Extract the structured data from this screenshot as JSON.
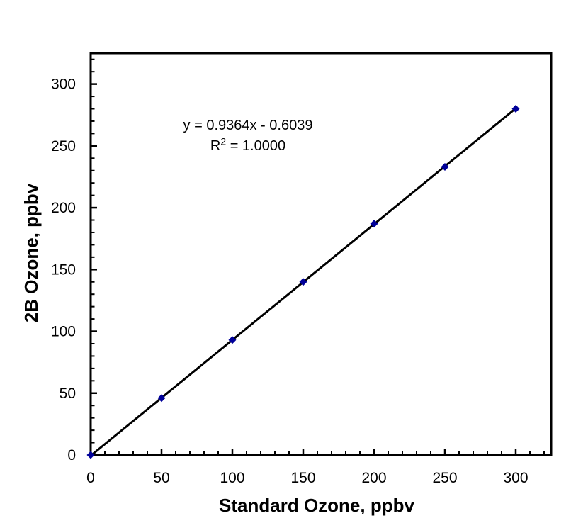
{
  "chart_data": {
    "type": "scatter",
    "title": "",
    "xlabel": "Standard Ozone, ppbv",
    "ylabel": "2B Ozone, ppbv",
    "x": [
      0,
      50,
      100,
      150,
      200,
      250,
      300
    ],
    "y": [
      0,
      46,
      93,
      140,
      187,
      233,
      280
    ],
    "xlim": [
      0,
      325
    ],
    "ylim": [
      0,
      325
    ],
    "x_tick_labels": [
      "0",
      "50",
      "100",
      "150",
      "200",
      "250",
      "300"
    ],
    "y_tick_labels": [
      "0",
      "50",
      "100",
      "150",
      "200",
      "250",
      "300"
    ],
    "major_tick_step": 50,
    "minor_tick_step": 10,
    "grid": "off",
    "legend": "none",
    "marker": {
      "shape": "diamond",
      "color": "#000099"
    },
    "line_color": "#000000",
    "trendline": {
      "slope": 0.9364,
      "intercept": -0.6039,
      "color": "#000000",
      "x_range": [
        0,
        300
      ]
    },
    "annotation": {
      "equation": "y = 0.9364x - 0.6039",
      "r2_base": "R",
      "r2_sup": "2",
      "r2_rest": " = 1.0000"
    }
  }
}
